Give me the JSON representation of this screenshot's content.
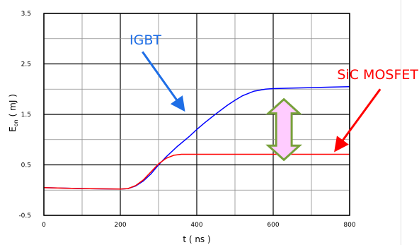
{
  "chart_data": {
    "type": "line",
    "xlabel": "t ( ns )",
    "ylabel": "E",
    "ylabel_sub": "on",
    "ylabel_unit": "( mJ )",
    "xlim": [
      0,
      800
    ],
    "ylim": [
      -0.5,
      3.5
    ],
    "x_ticks": [
      0,
      200,
      400,
      600,
      800
    ],
    "x_tick_labels": [
      "0",
      "200",
      "400",
      "600",
      "800"
    ],
    "y_ticks": [
      -0.5,
      0.5,
      1.5,
      2.5,
      3.5
    ],
    "y_tick_labels": [
      "-0.5",
      "0.5",
      "1.5",
      "2.5",
      "3.5"
    ],
    "x_grid": [
      0,
      100,
      200,
      300,
      400,
      500,
      600,
      700,
      800
    ],
    "y_grid": [
      -0.5,
      0,
      0.5,
      1,
      1.5,
      2,
      2.5,
      3,
      3.5
    ],
    "grid": true,
    "series": [
      {
        "name": "IGBT",
        "color": "#0000ff",
        "x": [
          0,
          100,
          200,
          220,
          240,
          260,
          280,
          300,
          320,
          350,
          380,
          400,
          420,
          450,
          480,
          500,
          520,
          550,
          580,
          600,
          650,
          700,
          750,
          800
        ],
        "y": [
          0.05,
          0.03,
          0.02,
          0.03,
          0.08,
          0.18,
          0.32,
          0.5,
          0.66,
          0.87,
          1.06,
          1.2,
          1.33,
          1.51,
          1.68,
          1.78,
          1.87,
          1.96,
          2.0,
          2.01,
          2.02,
          2.03,
          2.04,
          2.05
        ]
      },
      {
        "name": "SiC MOSFET",
        "color": "#ff0000",
        "x": [
          0,
          100,
          200,
          220,
          240,
          260,
          280,
          300,
          320,
          340,
          360,
          400,
          500,
          600,
          700,
          800
        ],
        "y": [
          0.05,
          0.03,
          0.02,
          0.03,
          0.09,
          0.2,
          0.36,
          0.52,
          0.63,
          0.69,
          0.71,
          0.71,
          0.71,
          0.71,
          0.71,
          0.71
        ]
      }
    ],
    "annotations": [
      {
        "text": "IGBT",
        "color": "#1e6ee6",
        "arrow_from": [
          258,
          2.74
        ],
        "arrow_to": [
          365,
          1.6
        ]
      },
      {
        "text": "SiC MOSFET",
        "color": "#ff0000",
        "arrow_from": [
          880,
          2.0
        ],
        "arrow_to": [
          764,
          0.8
        ]
      }
    ],
    "double_arrow": {
      "x": 628,
      "y_top": 1.8,
      "y_bottom": 0.6,
      "fill": "#ffccff",
      "stroke": "#77a03a"
    }
  }
}
